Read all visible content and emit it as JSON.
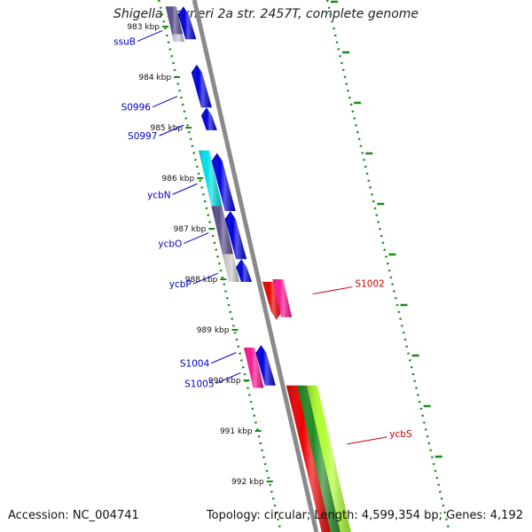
{
  "title": "Shigella flexneri 2a str. 2457T, complete genome",
  "footer": {
    "accession": "Accession: NC_004741",
    "stats": "Topology: circular; Length: 4,599,354 bp; Genes: 4,192"
  },
  "colors": {
    "backbone": "#8a8a8a",
    "dotted_track": "#1a8a1a",
    "forward_label": "#0000cc",
    "reverse_label": "#cc0000"
  },
  "ticks": [
    {
      "label": "983 kbp",
      "pos": 983
    },
    {
      "label": "984 kbp",
      "pos": 984
    },
    {
      "label": "985 kbp",
      "pos": 985
    },
    {
      "label": "986 kbp",
      "pos": 986
    },
    {
      "label": "987 kbp",
      "pos": 987
    },
    {
      "label": "988 kbp",
      "pos": 988
    },
    {
      "label": "989 kbp",
      "pos": 989
    },
    {
      "label": "990 kbp",
      "pos": 990
    },
    {
      "label": "991 kbp",
      "pos": 991
    },
    {
      "label": "992 kbp",
      "pos": 992
    }
  ],
  "gene_labels": [
    {
      "name": "ssuB",
      "strand": "forward",
      "pos": 983.15
    },
    {
      "name": "S0996",
      "strand": "forward",
      "pos": 984.45
    },
    {
      "name": "S0997",
      "strand": "forward",
      "pos": 985.02
    },
    {
      "name": "ycbN",
      "strand": "forward",
      "pos": 986.18
    },
    {
      "name": "ycbO",
      "strand": "forward",
      "pos": 987.15
    },
    {
      "name": "ycbP",
      "strand": "forward",
      "pos": 987.95
    },
    {
      "name": "S1002",
      "strand": "reverse",
      "pos": 988.08
    },
    {
      "name": "S1004",
      "strand": "forward",
      "pos": 989.52
    },
    {
      "name": "S1005",
      "strand": "forward",
      "pos": 989.92
    },
    {
      "name": "ycbS",
      "strand": "reverse",
      "pos": 991.05
    }
  ],
  "features": [
    {
      "lane": -2,
      "start": 982.6,
      "end": 983.15,
      "color": "#5a4e8c",
      "strand": "none"
    },
    {
      "lane": -2,
      "start": 983.15,
      "end": 983.3,
      "color": "#c8c8dc",
      "strand": "none"
    },
    {
      "lane": -1,
      "start": 982.6,
      "end": 983.25,
      "color": "#0000dd",
      "strand": "forward"
    },
    {
      "lane": -1,
      "start": 983.75,
      "end": 984.6,
      "color": "#0000dd",
      "strand": "forward"
    },
    {
      "lane": -1,
      "start": 984.6,
      "end": 985.05,
      "color": "#0000dd",
      "strand": "forward"
    },
    {
      "lane": -2,
      "start": 985.45,
      "end": 986.55,
      "color": "#00e0e8",
      "strand": "none"
    },
    {
      "lane": -1,
      "start": 985.5,
      "end": 986.65,
      "color": "#0000dd",
      "strand": "forward"
    },
    {
      "lane": -2,
      "start": 986.55,
      "end": 987.5,
      "color": "#5a4e8c",
      "strand": "none"
    },
    {
      "lane": -1,
      "start": 986.65,
      "end": 987.6,
      "color": "#0000dd",
      "strand": "forward"
    },
    {
      "lane": -2,
      "start": 987.5,
      "end": 988.05,
      "color": "#cccccc",
      "strand": "none"
    },
    {
      "lane": -1,
      "start": 987.6,
      "end": 988.05,
      "color": "#0000dd",
      "strand": "forward"
    },
    {
      "lane": 1,
      "start": 988.05,
      "end": 988.8,
      "color": "#ee0000",
      "strand": "reverse"
    },
    {
      "lane": 2,
      "start": 988.0,
      "end": 988.75,
      "color": "#ff1493",
      "strand": "none"
    },
    {
      "lane": -2,
      "start": 989.35,
      "end": 990.15,
      "color": "#ff1493",
      "strand": "none"
    },
    {
      "lane": -1,
      "start": 989.3,
      "end": 990.1,
      "color": "#0000dd",
      "strand": "forward"
    },
    {
      "lane": 1,
      "start": 990.1,
      "end": 993.2,
      "color": "#ee0000",
      "strand": "reverse"
    },
    {
      "lane": 2,
      "start": 990.1,
      "end": 993.2,
      "color": "#228b22",
      "strand": "none"
    },
    {
      "lane": 3,
      "start": 990.1,
      "end": 993.2,
      "color": "#b0ff30",
      "strand": "none"
    }
  ]
}
